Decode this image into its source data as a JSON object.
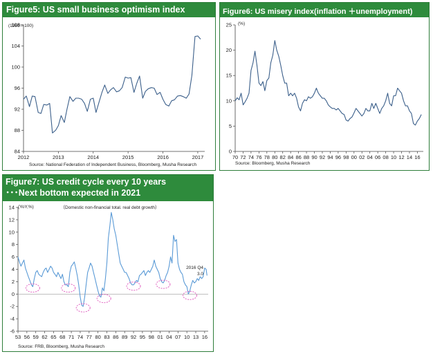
{
  "chart_data": [
    {
      "type": "line",
      "title": "Figure5: US small business optimism index",
      "unit_label": "(1986＝100)",
      "source": "Source: National Federation of Independent Business, Bloomberg, Musha Research",
      "x_tick_labels": [
        "2012",
        "2013",
        "2014",
        "2015",
        "2016",
        "2017"
      ],
      "y_tick_labels": [
        "84",
        "88",
        "92",
        "96",
        "100",
        "104",
        "108"
      ],
      "xlim": [
        2012.0,
        2017.2
      ],
      "ylim": [
        84,
        108
      ],
      "color": "#3b5f8a",
      "series": [
        {
          "x": [
            2012.0,
            2012.08,
            2012.17,
            2012.25,
            2012.33,
            2012.42,
            2012.5,
            2012.58,
            2012.67,
            2012.75,
            2012.83,
            2012.92,
            2013.0,
            2013.08,
            2013.17,
            2013.25,
            2013.33,
            2013.42,
            2013.5,
            2013.58,
            2013.67,
            2013.75,
            2013.83,
            2013.92,
            2014.0,
            2014.08,
            2014.17,
            2014.25,
            2014.33,
            2014.42,
            2014.5,
            2014.58,
            2014.67,
            2014.75,
            2014.83,
            2014.92,
            2015.0,
            2015.08,
            2015.17,
            2015.25,
            2015.33,
            2015.42,
            2015.5,
            2015.58,
            2015.67,
            2015.75,
            2015.83,
            2015.92,
            2016.0,
            2016.08,
            2016.17,
            2016.25,
            2016.33,
            2016.42,
            2016.5,
            2016.58,
            2016.67,
            2016.75,
            2016.83,
            2016.92,
            2017.0,
            2017.08
          ],
          "values": [
            93.9,
            94.5,
            92.5,
            94.5,
            94.4,
            91.4,
            91.2,
            92.9,
            92.8,
            93.1,
            87.5,
            88.0,
            88.9,
            90.8,
            89.5,
            92.1,
            94.4,
            93.5,
            94.1,
            94.1,
            93.9,
            93.1,
            91.6,
            93.9,
            94.1,
            91.4,
            93.4,
            95.2,
            96.6,
            95.0,
            95.7,
            96.1,
            95.3,
            95.5,
            96.1,
            98.1,
            97.9,
            98.0,
            95.2,
            96.9,
            98.3,
            94.1,
            95.4,
            95.9,
            96.1,
            96.0,
            94.8,
            95.2,
            93.9,
            92.9,
            92.6,
            93.6,
            93.8,
            94.5,
            94.6,
            94.4,
            94.1,
            94.9,
            98.4,
            105.8,
            105.9,
            105.3
          ]
        }
      ]
    },
    {
      "type": "line",
      "title": "Figure6: US misery index(inflation ＋unemployment)",
      "unit_label": "(%)",
      "source": "Source: Bloomberg, Musha Research",
      "x_tick_labels": [
        "70",
        "72",
        "74",
        "76",
        "78",
        "80",
        "82",
        "84",
        "86",
        "88",
        "90",
        "92",
        "94",
        "96",
        "98",
        "00",
        "02",
        "04",
        "06",
        "08",
        "10",
        "12",
        "14",
        "16"
      ],
      "y_tick_labels": [
        "0",
        "5",
        "10",
        "15",
        "20",
        "25"
      ],
      "xlim": [
        1970,
        2017.5
      ],
      "ylim": [
        0,
        25
      ],
      "color": "#3b5f8a",
      "series": [
        {
          "x": [
            1970,
            1970.5,
            1971,
            1971.5,
            1972,
            1972.5,
            1973,
            1973.5,
            1974,
            1974.5,
            1975,
            1975.5,
            1976,
            1976.5,
            1977,
            1977.5,
            1978,
            1978.5,
            1979,
            1979.5,
            1980,
            1980.5,
            1981,
            1981.5,
            1982,
            1982.5,
            1983,
            1983.5,
            1984,
            1984.5,
            1985,
            1985.5,
            1986,
            1986.5,
            1987,
            1987.5,
            1988,
            1988.5,
            1989,
            1989.5,
            1990,
            1990.5,
            1991,
            1991.5,
            1992,
            1992.5,
            1993,
            1993.5,
            1994,
            1994.5,
            1995,
            1995.5,
            1996,
            1996.5,
            1997,
            1997.5,
            1998,
            1998.5,
            1999,
            1999.5,
            2000,
            2000.5,
            2001,
            2001.5,
            2002,
            2002.5,
            2003,
            2003.5,
            2004,
            2004.5,
            2005,
            2005.5,
            2006,
            2006.5,
            2007,
            2007.5,
            2008,
            2008.5,
            2009,
            2009.5,
            2010,
            2010.5,
            2011,
            2011.5,
            2012,
            2012.5,
            2013,
            2013.5,
            2014,
            2014.5,
            2015,
            2015.5,
            2016,
            2016.5,
            2017
          ],
          "values": [
            10.0,
            10.6,
            10.2,
            11.5,
            9.2,
            9.8,
            10.5,
            11.5,
            16.0,
            17.5,
            19.8,
            17.0,
            13.5,
            13.0,
            13.8,
            12.0,
            14.0,
            14.5,
            17.5,
            19.0,
            21.9,
            20.0,
            18.8,
            17.0,
            15.0,
            13.5,
            13.5,
            11.0,
            11.5,
            11.0,
            11.5,
            10.5,
            8.8,
            8.0,
            9.5,
            10.2,
            10.0,
            10.8,
            10.5,
            10.8,
            11.5,
            12.5,
            11.5,
            11.0,
            10.5,
            10.5,
            10.0,
            9.2,
            8.8,
            8.5,
            8.5,
            8.2,
            8.5,
            8.0,
            7.5,
            7.3,
            6.2,
            6.0,
            6.5,
            6.8,
            7.6,
            8.5,
            8.0,
            7.5,
            7.0,
            7.5,
            8.5,
            8.0,
            8.0,
            9.5,
            8.5,
            9.5,
            8.5,
            7.5,
            8.5,
            9.0,
            10.0,
            11.5,
            9.5,
            9.0,
            11.0,
            11.0,
            12.5,
            12.0,
            11.5,
            10.0,
            9.0,
            9.0,
            8.0,
            7.5,
            5.5,
            5.2,
            6.0,
            6.5,
            7.3
          ]
        }
      ]
    },
    {
      "type": "line",
      "title_lines": [
        "Figure7: US credit cycle every 10 years",
        "･･･Next bottom expected in 2021"
      ],
      "unit_label": "(YoY,%)",
      "subtitle": "（Domestic non-financial total. real debt growth）",
      "annotation": [
        "2016 Q4",
        "3.0"
      ],
      "source": "Source: FRB, Bloomberg, Musha Research",
      "x_tick_labels": [
        "53",
        "56",
        "59",
        "62",
        "65",
        "68",
        "71",
        "74",
        "77",
        "80",
        "83",
        "86",
        "89",
        "92",
        "95",
        "98",
        "01",
        "04",
        "07",
        "10",
        "13",
        "16"
      ],
      "y_tick_labels": [
        "-6",
        "-4",
        "-2",
        "0",
        "2",
        "4",
        "6",
        "8",
        "10",
        "12",
        "14"
      ],
      "xlim": [
        1953,
        2017.2
      ],
      "ylim": [
        -6,
        14
      ],
      "color": "#5a9ad6",
      "circle_color": "#e060c0",
      "trough_years": [
        1958,
        1970,
        1975,
        1982,
        1992,
        2002,
        2011
      ],
      "series": [
        {
          "x": [
            1953,
            1953.5,
            1954,
            1954.5,
            1955,
            1955.5,
            1956,
            1956.5,
            1957,
            1957.5,
            1958,
            1958.5,
            1959,
            1959.5,
            1960,
            1960.5,
            1961,
            1961.5,
            1962,
            1962.5,
            1963,
            1963.5,
            1964,
            1964.5,
            1965,
            1965.5,
            1966,
            1966.5,
            1967,
            1967.5,
            1968,
            1968.5,
            1969,
            1969.5,
            1970,
            1970.5,
            1971,
            1971.5,
            1972,
            1972.5,
            1973,
            1973.5,
            1974,
            1974.5,
            1975,
            1975.5,
            1976,
            1976.5,
            1977,
            1977.5,
            1978,
            1978.5,
            1979,
            1979.5,
            1980,
            1980.5,
            1981,
            1981.5,
            1982,
            1982.5,
            1983,
            1983.5,
            1984,
            1984.5,
            1985,
            1985.5,
            1986,
            1986.5,
            1987,
            1987.5,
            1988,
            1988.5,
            1989,
            1989.5,
            1990,
            1990.5,
            1991,
            1991.5,
            1992,
            1992.5,
            1993,
            1993.5,
            1994,
            1994.5,
            1995,
            1995.5,
            1996,
            1996.5,
            1997,
            1997.5,
            1998,
            1998.5,
            1999,
            1999.5,
            2000,
            2000.5,
            2001,
            2001.5,
            2002,
            2002.5,
            2003,
            2003.5,
            2004,
            2004.5,
            2005,
            2005.5,
            2006,
            2006.5,
            2007,
            2007.5,
            2008,
            2008.5,
            2009,
            2009.5,
            2010,
            2010.5,
            2011,
            2011.5,
            2012,
            2012.5,
            2013,
            2013.5,
            2014,
            2014.5,
            2015,
            2015.5,
            2016,
            2016.5,
            2016.8
          ],
          "values": [
            6.0,
            5.2,
            4.5,
            5.0,
            5.5,
            4.2,
            3.5,
            2.8,
            2.2,
            1.5,
            1.2,
            2.5,
            3.5,
            3.8,
            3.2,
            3.0,
            2.8,
            3.5,
            4.0,
            4.2,
            3.5,
            4.0,
            4.5,
            4.2,
            3.5,
            3.2,
            2.8,
            3.5,
            3.0,
            2.5,
            3.2,
            2.0,
            1.5,
            1.5,
            1.2,
            3.5,
            4.5,
            4.8,
            5.2,
            4.2,
            3.0,
            1.5,
            -0.5,
            -1.8,
            -2.0,
            -0.5,
            1.5,
            3.5,
            4.2,
            5.0,
            4.5,
            3.5,
            2.5,
            1.5,
            0.5,
            -0.3,
            -0.5,
            1.0,
            0.5,
            2.5,
            5.0,
            9.0,
            11.0,
            13.2,
            12.0,
            10.5,
            9.5,
            8.0,
            6.5,
            5.0,
            4.5,
            4.0,
            3.5,
            3.5,
            3.0,
            2.5,
            1.8,
            1.5,
            1.5,
            1.8,
            2.2,
            2.0,
            3.0,
            3.2,
            3.5,
            3.8,
            3.0,
            3.5,
            3.8,
            3.5,
            4.0,
            4.5,
            5.5,
            4.5,
            4.0,
            3.5,
            2.5,
            2.0,
            1.8,
            2.2,
            3.0,
            3.5,
            4.5,
            6.0,
            5.0,
            9.5,
            8.5,
            8.8,
            5.0,
            4.0,
            3.5,
            3.2,
            2.0,
            1.5,
            1.2,
            0.0,
            0.5,
            1.5,
            2.2,
            1.8,
            2.0,
            2.5,
            2.2,
            2.8,
            2.5,
            2.8,
            4.2,
            4.0,
            3.0
          ]
        }
      ]
    }
  ]
}
